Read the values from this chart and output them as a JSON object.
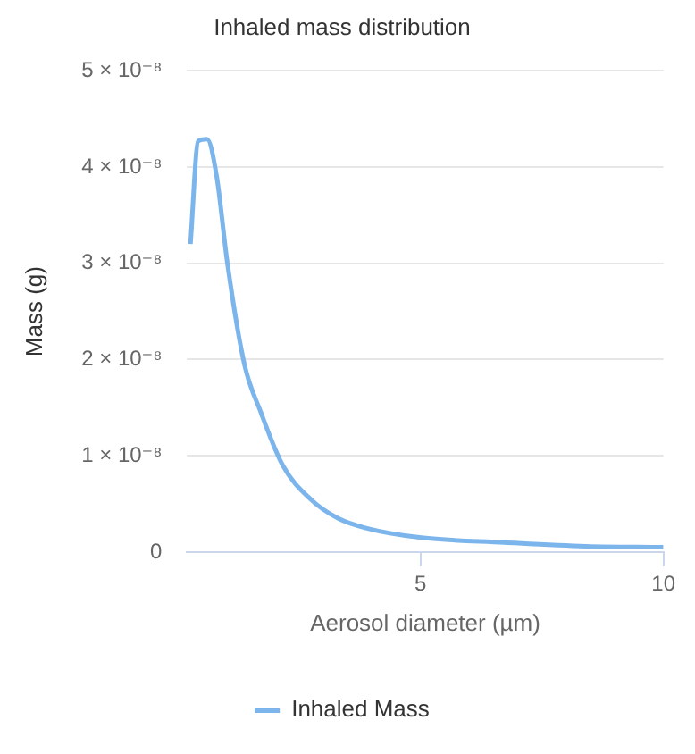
{
  "chart_data": {
    "type": "line",
    "title": "Inhaled mass distribution",
    "xlabel": "Aerosol diameter (µm)",
    "ylabel": "Mass (g)",
    "x": [
      0.27,
      0.43,
      0.61,
      0.81,
      1.03,
      1.38,
      1.72,
      2.17,
      2.74,
      3.31,
      3.88,
      5.02,
      6.72,
      8.4,
      10
    ],
    "series": [
      {
        "name": "Inhaled Mass",
        "color": "#7cb5ec",
        "values": [
          3.2e-08,
          4.27e-08,
          4.29e-08,
          3.9e-08,
          3e-08,
          1.95e-08,
          1.45e-08,
          9e-09,
          5.5e-09,
          3.5e-09,
          2.5e-09,
          1.5e-09,
          1e-09,
          6e-10,
          5e-10
        ]
      }
    ],
    "xlim": [
      0.2,
      10
    ],
    "xticks": [
      5,
      10
    ],
    "ylim": [
      0,
      5e-08
    ],
    "yticks": [
      0,
      {
        "value": 1e-08,
        "label": "1 × 10⁻⁸"
      },
      {
        "value": 2e-08,
        "label": "2 × 10⁻⁸"
      },
      {
        "value": 3e-08,
        "label": "3 × 10⁻⁸"
      },
      {
        "value": 4e-08,
        "label": "4 × 10⁻⁸"
      },
      {
        "value": 5e-08,
        "label": "5 × 10⁻⁸"
      }
    ],
    "grid": "y",
    "legend": "bottom",
    "marker": "none",
    "line_style": "solid"
  }
}
